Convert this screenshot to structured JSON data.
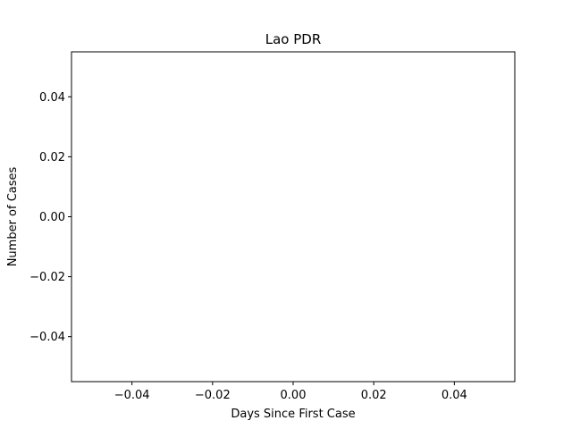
{
  "chart_data": {
    "type": "line",
    "title": "Lao PDR",
    "xlabel": "Days Since First Case",
    "ylabel": "Number of Cases",
    "xlim": [
      -0.055,
      0.055
    ],
    "ylim": [
      -0.055,
      0.055
    ],
    "xticks": [
      -0.04,
      -0.02,
      0.0,
      0.02,
      0.04
    ],
    "xtick_labels": [
      "−0.04",
      "−0.02",
      "0.00",
      "0.02",
      "0.04"
    ],
    "yticks": [
      -0.04,
      -0.02,
      0.0,
      0.02,
      0.04
    ],
    "ytick_labels": [
      "−0.04",
      "−0.02",
      "0.00",
      "0.02",
      "0.04"
    ],
    "grid": false,
    "series": []
  }
}
